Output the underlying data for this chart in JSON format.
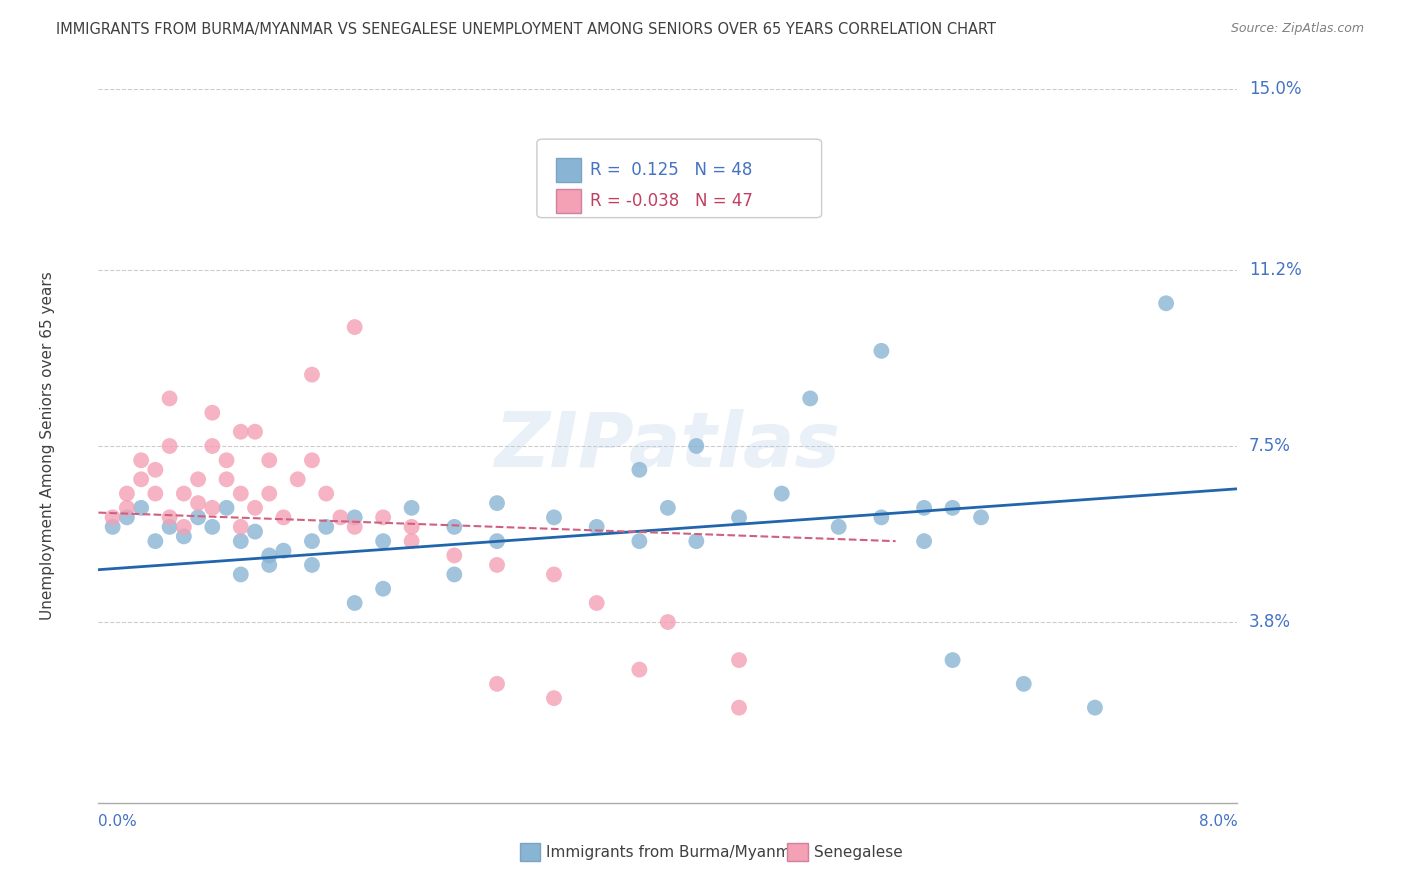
{
  "title": "IMMIGRANTS FROM BURMA/MYANMAR VS SENEGALESE UNEMPLOYMENT AMONG SENIORS OVER 65 YEARS CORRELATION CHART",
  "source": "Source: ZipAtlas.com",
  "blue_color": "#8ab4d4",
  "pink_color": "#f4a0b5",
  "trend_blue_color": "#2166ac",
  "trend_pink_color": "#d06080",
  "background_color": "#ffffff",
  "title_color": "#404040",
  "axis_label_color": "#4472c4",
  "watermark": "ZIPatlas",
  "legend_blue_r": "R =  0.125",
  "legend_blue_n": "N = 48",
  "legend_pink_r": "R = -0.038",
  "legend_pink_n": "N = 47",
  "legend_blue_label": "Immigrants from Burma/Myanmar",
  "legend_pink_label": "Senegalese",
  "xlim": [
    0.0,
    0.08
  ],
  "ylim": [
    0.0,
    0.15
  ],
  "y_tick_vals": [
    0.038,
    0.075,
    0.112,
    0.15
  ],
  "y_tick_labels": [
    "3.8%",
    "7.5%",
    "11.2%",
    "15.0%"
  ],
  "blue_trend_x": [
    0.0,
    0.08
  ],
  "blue_trend_y": [
    0.049,
    0.066
  ],
  "pink_trend_x": [
    0.0,
    0.056
  ],
  "pink_trend_y": [
    0.061,
    0.055
  ],
  "blue_x": [
    0.001,
    0.002,
    0.003,
    0.004,
    0.005,
    0.006,
    0.007,
    0.008,
    0.009,
    0.01,
    0.011,
    0.012,
    0.013,
    0.015,
    0.016,
    0.018,
    0.02,
    0.022,
    0.025,
    0.028,
    0.01,
    0.012,
    0.015,
    0.018,
    0.02,
    0.025,
    0.028,
    0.032,
    0.035,
    0.038,
    0.04,
    0.042,
    0.045,
    0.038,
    0.042,
    0.048,
    0.052,
    0.055,
    0.058,
    0.06,
    0.05,
    0.055,
    0.06,
    0.065,
    0.07,
    0.075,
    0.058,
    0.062
  ],
  "blue_y": [
    0.058,
    0.06,
    0.062,
    0.055,
    0.058,
    0.056,
    0.06,
    0.058,
    0.062,
    0.055,
    0.057,
    0.05,
    0.053,
    0.055,
    0.058,
    0.06,
    0.055,
    0.062,
    0.058,
    0.063,
    0.048,
    0.052,
    0.05,
    0.042,
    0.045,
    0.048,
    0.055,
    0.06,
    0.058,
    0.055,
    0.062,
    0.055,
    0.06,
    0.07,
    0.075,
    0.065,
    0.058,
    0.06,
    0.055,
    0.062,
    0.085,
    0.095,
    0.03,
    0.025,
    0.02,
    0.105,
    0.062,
    0.06
  ],
  "pink_x": [
    0.001,
    0.002,
    0.002,
    0.003,
    0.003,
    0.004,
    0.004,
    0.005,
    0.005,
    0.006,
    0.006,
    0.007,
    0.007,
    0.008,
    0.008,
    0.009,
    0.009,
    0.01,
    0.01,
    0.011,
    0.011,
    0.012,
    0.013,
    0.014,
    0.015,
    0.016,
    0.017,
    0.018,
    0.02,
    0.022,
    0.005,
    0.008,
    0.01,
    0.012,
    0.015,
    0.018,
    0.022,
    0.025,
    0.028,
    0.032,
    0.035,
    0.04,
    0.045,
    0.028,
    0.032,
    0.038,
    0.045
  ],
  "pink_y": [
    0.06,
    0.065,
    0.062,
    0.068,
    0.072,
    0.065,
    0.07,
    0.06,
    0.075,
    0.065,
    0.058,
    0.063,
    0.068,
    0.062,
    0.075,
    0.068,
    0.072,
    0.065,
    0.058,
    0.062,
    0.078,
    0.065,
    0.06,
    0.068,
    0.072,
    0.065,
    0.06,
    0.058,
    0.06,
    0.058,
    0.085,
    0.082,
    0.078,
    0.072,
    0.09,
    0.1,
    0.055,
    0.052,
    0.05,
    0.048,
    0.042,
    0.038,
    0.03,
    0.025,
    0.022,
    0.028,
    0.02
  ]
}
